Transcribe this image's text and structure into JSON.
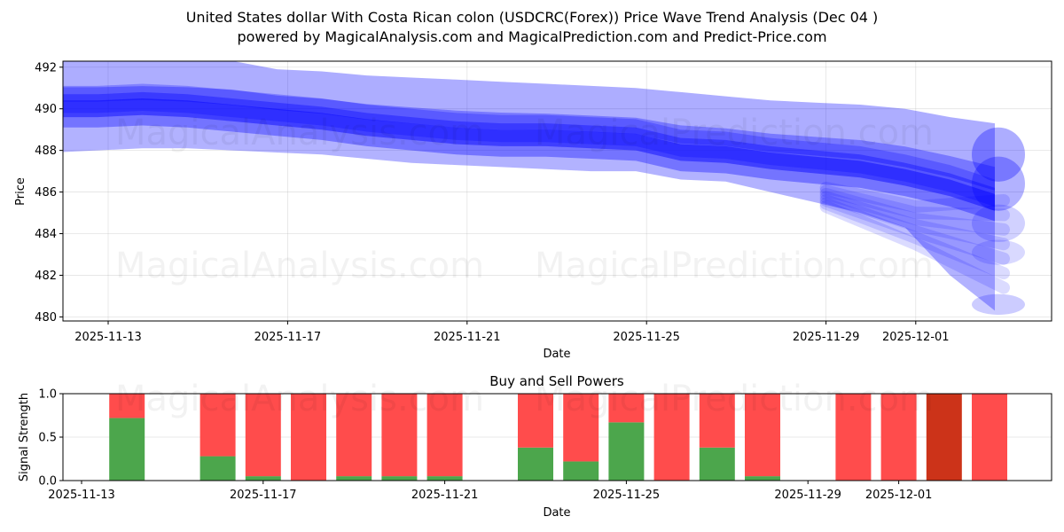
{
  "header": {
    "title": "United States dollar With Costa Rican colon (USDCRC(Forex)) Price Wave Trend Analysis (Dec 04 )",
    "subtitle": "powered by MagicalAnalysis.com and MagicalPrediction.com and Predict-Price.com"
  },
  "watermarks": [
    "MagicalAnalysis.com",
    "MagicalPrediction.com"
  ],
  "colors": {
    "wave": "#0000ff",
    "buy": "#4ca64c",
    "sell": "#ff4c4c",
    "sell_strong": "#cc3319"
  },
  "chart_data": [
    {
      "type": "area",
      "title": "Price Wave Trend",
      "xlabel": "Date",
      "ylabel": "Price",
      "ylim": [
        479.8,
        492.3
      ],
      "yticks": [
        480,
        482,
        484,
        486,
        488,
        490,
        492
      ],
      "xticks": [
        "2025-11-13",
        "2025-11-17",
        "2025-11-21",
        "2025-11-25",
        "2025-11-29",
        "2025-12-01"
      ],
      "grid": true,
      "x": [
        "2025-11-12",
        "2025-11-13",
        "2025-11-14",
        "2025-11-15",
        "2025-11-16",
        "2025-11-17",
        "2025-11-18",
        "2025-11-19",
        "2025-11-20",
        "2025-11-21",
        "2025-11-22",
        "2025-11-23",
        "2025-11-24",
        "2025-11-25",
        "2025-11-26",
        "2025-11-27",
        "2025-11-28",
        "2025-11-29",
        "2025-11-30",
        "2025-12-01",
        "2025-12-02",
        "2025-12-03"
      ],
      "series": [
        {
          "name": "wave-upper-envelope",
          "values": [
            492.3,
            492.3,
            492.3,
            492.3,
            492.3,
            491.9,
            491.8,
            491.6,
            491.5,
            491.4,
            491.3,
            491.2,
            491.1,
            491.0,
            490.8,
            490.6,
            490.4,
            490.3,
            490.2,
            490.0,
            489.6,
            489.3
          ]
        },
        {
          "name": "wave-core",
          "values": [
            490.0,
            490.0,
            490.1,
            490.0,
            489.8,
            489.6,
            489.4,
            489.1,
            488.9,
            488.7,
            488.6,
            488.6,
            488.5,
            488.4,
            487.9,
            487.8,
            487.5,
            487.3,
            487.1,
            486.7,
            486.2,
            485.5
          ]
        },
        {
          "name": "wave-lower-envelope",
          "values": [
            487.9,
            488.0,
            488.1,
            488.1,
            488.0,
            487.9,
            487.8,
            487.6,
            487.4,
            487.3,
            487.2,
            487.1,
            487.0,
            487.0,
            486.6,
            486.5,
            486.0,
            485.5,
            485.0,
            484.3,
            482.0,
            480.3
          ]
        }
      ]
    },
    {
      "type": "bar",
      "title": "Buy and Sell Powers",
      "xlabel": "Date",
      "ylabel": "Signal Strength",
      "ylim": [
        0,
        1.0
      ],
      "yticks": [
        "0.0",
        "0.5",
        "1.0"
      ],
      "xticks": [
        "2025-11-13",
        "2025-11-17",
        "2025-11-21",
        "2025-11-25",
        "2025-11-29",
        "2025-12-01"
      ],
      "categories": [
        "2025-11-14",
        "2025-11-16",
        "2025-11-17",
        "2025-11-18",
        "2025-11-19",
        "2025-11-20",
        "2025-11-21",
        "2025-11-23",
        "2025-11-24",
        "2025-11-25",
        "2025-11-26",
        "2025-11-27",
        "2025-11-28",
        "2025-11-30",
        "2025-12-01",
        "2025-12-02",
        "2025-12-03"
      ],
      "series": [
        {
          "name": "Buy",
          "values": [
            0.72,
            0.28,
            0.05,
            0.0,
            0.05,
            0.05,
            0.05,
            0.38,
            0.22,
            0.67,
            0.0,
            0.38,
            0.05,
            0.0,
            0.0,
            0.0,
            0.0
          ]
        },
        {
          "name": "Sell",
          "values": [
            0.28,
            0.72,
            0.95,
            1.0,
            0.95,
            0.95,
            0.95,
            0.62,
            0.78,
            0.33,
            1.0,
            0.62,
            0.95,
            1.0,
            1.0,
            1.0,
            1.0
          ]
        }
      ],
      "strong_sell_category": "2025-12-02"
    }
  ]
}
